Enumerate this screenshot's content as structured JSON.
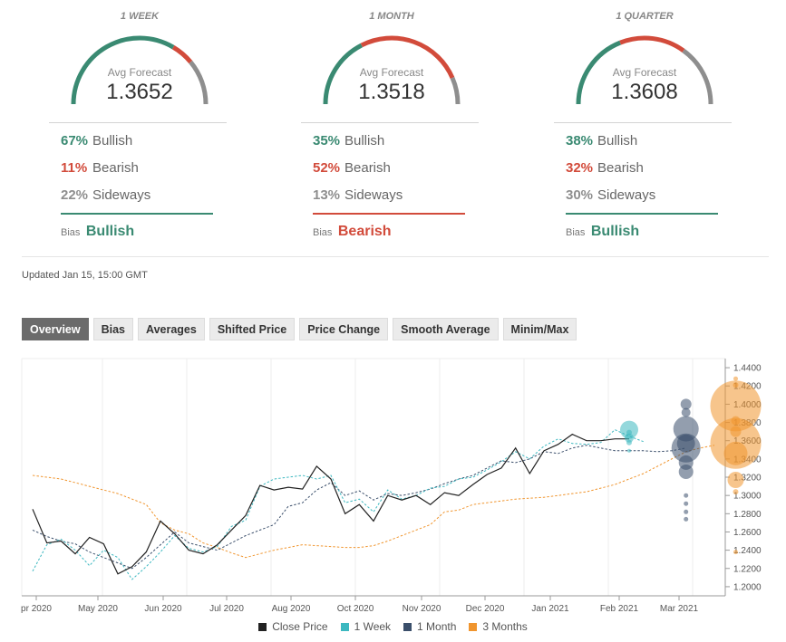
{
  "colors": {
    "bullish": "#3a8a72",
    "bearish": "#d24b3b",
    "sideways": "#8e8e8e",
    "close": "#222222",
    "week": "#3cb8c0",
    "month": "#3b4f6b",
    "quarter": "#f0952e"
  },
  "forecast_panels": [
    {
      "period": "1 WEEK",
      "avg_label": "Avg Forecast",
      "avg_value": "1.3652",
      "bullish_pct": "67%",
      "bullish_label": "Bullish",
      "bearish_pct": "11%",
      "bearish_label": "Bearish",
      "sideways_pct": "22%",
      "sideways_label": "Sideways",
      "bias_label": "Bias",
      "bias_value": "Bullish",
      "bias_type": "bullish",
      "gauge": [
        0.67,
        0.11,
        0.22
      ]
    },
    {
      "period": "1 MONTH",
      "avg_label": "Avg Forecast",
      "avg_value": "1.3518",
      "bullish_pct": "35%",
      "bullish_label": "Bullish",
      "bearish_pct": "52%",
      "bearish_label": "Bearish",
      "sideways_pct": "13%",
      "sideways_label": "Sideways",
      "bias_label": "Bias",
      "bias_value": "Bearish",
      "bias_type": "bearish",
      "gauge": [
        0.35,
        0.52,
        0.13
      ]
    },
    {
      "period": "1 QUARTER",
      "avg_label": "Avg Forecast",
      "avg_value": "1.3608",
      "bullish_pct": "38%",
      "bullish_label": "Bullish",
      "bearish_pct": "32%",
      "bearish_label": "Bearish",
      "sideways_pct": "30%",
      "sideways_label": "Sideways",
      "bias_label": "Bias",
      "bias_value": "Bullish",
      "bias_type": "bullish",
      "gauge": [
        0.38,
        0.32,
        0.3
      ]
    }
  ],
  "updated": "Updated Jan 15, 15:00 GMT",
  "tabs": [
    {
      "label": "Overview",
      "active": true
    },
    {
      "label": "Bias",
      "active": false
    },
    {
      "label": "Averages",
      "active": false
    },
    {
      "label": "Shifted Price",
      "active": false
    },
    {
      "label": "Price Change",
      "active": false
    },
    {
      "label": "Smooth Average",
      "active": false
    },
    {
      "label": "Minim/Max",
      "active": false
    }
  ],
  "legend": [
    {
      "label": "Close Price",
      "key": "close"
    },
    {
      "label": "1 Week",
      "key": "week"
    },
    {
      "label": "1 Month",
      "key": "month"
    },
    {
      "label": "3 Months",
      "key": "quarter"
    }
  ],
  "chart_data": {
    "type": "line",
    "x_tick_labels": [
      "pr 2020",
      "May 2020",
      "Jun 2020",
      "Jul 2020",
      "Aug 2020",
      "Oct 2020",
      "Nov 2020",
      "Dec 2020",
      "Jan 2021",
      "Feb 2021",
      "Mar 2021"
    ],
    "y_tick_labels": [
      "1.4400",
      "1.4200",
      "1.4000",
      "1.3800",
      "1.3600",
      "1.3400",
      "1.3200",
      "1.3000",
      "1.2800",
      "1.2600",
      "1.2400",
      "1.2200",
      "1.2000"
    ],
    "ylim": [
      1.19,
      1.45
    ],
    "x_index_range": [
      0,
      48
    ],
    "series": [
      {
        "name": "Close Price",
        "key": "close",
        "style": "solid",
        "x": [
          0,
          1,
          2,
          3,
          4,
          5,
          6,
          7,
          8,
          9,
          10,
          11,
          12,
          13,
          14,
          15,
          16,
          17,
          18,
          19,
          20,
          21,
          22,
          23,
          24,
          25,
          26,
          27,
          28,
          29,
          30,
          31,
          32,
          33,
          34,
          35,
          36,
          37,
          38,
          39,
          40,
          41,
          42
        ],
        "values": [
          1.285,
          1.248,
          1.25,
          1.236,
          1.254,
          1.247,
          1.214,
          1.222,
          1.238,
          1.272,
          1.258,
          1.24,
          1.236,
          1.246,
          1.262,
          1.278,
          1.311,
          1.306,
          1.309,
          1.307,
          1.332,
          1.318,
          1.28,
          1.29,
          1.272,
          1.3,
          1.295,
          1.3,
          1.29,
          1.303,
          1.3,
          1.312,
          1.323,
          1.33,
          1.352,
          1.324,
          1.349,
          1.356,
          1.367,
          1.36,
          1.36,
          1.362,
          1.362
        ]
      },
      {
        "name": "1 Week",
        "key": "week",
        "style": "dashed",
        "x": [
          0,
          1,
          2,
          3,
          4,
          5,
          6,
          7,
          8,
          9,
          10,
          11,
          12,
          13,
          14,
          15,
          16,
          17,
          18,
          19,
          20,
          21,
          22,
          23,
          24,
          25,
          26,
          27,
          28,
          29,
          30,
          31,
          32,
          33,
          34,
          35,
          36,
          37,
          38,
          39,
          40,
          41,
          42,
          43
        ],
        "values": [
          1.217,
          1.246,
          1.252,
          1.24,
          1.223,
          1.24,
          1.232,
          1.208,
          1.222,
          1.238,
          1.256,
          1.242,
          1.238,
          1.244,
          1.266,
          1.273,
          1.31,
          1.318,
          1.32,
          1.322,
          1.318,
          1.322,
          1.292,
          1.296,
          1.282,
          1.306,
          1.296,
          1.3,
          1.308,
          1.31,
          1.318,
          1.32,
          1.328,
          1.337,
          1.348,
          1.34,
          1.354,
          1.362,
          1.357,
          1.356,
          1.358,
          1.372,
          1.365,
          1.359
        ]
      },
      {
        "name": "1 Month",
        "key": "month",
        "style": "dashed",
        "x": [
          0,
          1,
          2,
          3,
          4,
          5,
          6,
          7,
          8,
          9,
          10,
          11,
          12,
          13,
          14,
          15,
          16,
          17,
          18,
          19,
          20,
          21,
          22,
          23,
          24,
          25,
          26,
          27,
          28,
          29,
          30,
          31,
          32,
          33,
          34,
          35,
          36,
          37,
          38,
          39,
          40,
          41,
          42,
          43,
          44,
          45,
          46
        ],
        "values": [
          1.262,
          1.255,
          1.25,
          1.247,
          1.238,
          1.232,
          1.226,
          1.22,
          1.232,
          1.246,
          1.26,
          1.248,
          1.244,
          1.24,
          1.248,
          1.256,
          1.262,
          1.268,
          1.288,
          1.292,
          1.306,
          1.314,
          1.3,
          1.305,
          1.295,
          1.302,
          1.3,
          1.303,
          1.307,
          1.313,
          1.318,
          1.322,
          1.33,
          1.338,
          1.336,
          1.34,
          1.348,
          1.346,
          1.352,
          1.355,
          1.352,
          1.349,
          1.349,
          1.349,
          1.348,
          1.349,
          1.352
        ]
      },
      {
        "name": "3 Months",
        "key": "quarter",
        "style": "dashed",
        "x": [
          0,
          1,
          2,
          3,
          4,
          5,
          6,
          7,
          8,
          9,
          10,
          11,
          12,
          13,
          14,
          15,
          16,
          17,
          18,
          19,
          20,
          21,
          22,
          23,
          24,
          25,
          26,
          27,
          28,
          29,
          30,
          31,
          32,
          33,
          34,
          35,
          36,
          37,
          38,
          39,
          40,
          41,
          42,
          43,
          44,
          45,
          46,
          47,
          48
        ],
        "values": [
          1.322,
          1.32,
          1.318,
          1.314,
          1.31,
          1.306,
          1.302,
          1.296,
          1.29,
          1.27,
          1.262,
          1.258,
          1.248,
          1.243,
          1.237,
          1.232,
          1.236,
          1.24,
          1.243,
          1.246,
          1.245,
          1.244,
          1.243,
          1.243,
          1.245,
          1.25,
          1.256,
          1.262,
          1.268,
          1.282,
          1.284,
          1.29,
          1.292,
          1.294,
          1.296,
          1.297,
          1.298,
          1.3,
          1.302,
          1.304,
          1.308,
          1.312,
          1.318,
          1.324,
          1.332,
          1.34,
          1.348,
          1.352,
          1.355
        ]
      }
    ],
    "bubble_columns": [
      {
        "key": "week",
        "x": 42,
        "points": [
          {
            "y": 1.372,
            "r": 10
          },
          {
            "y": 1.369,
            "r": 3
          },
          {
            "y": 1.363,
            "r": 5
          },
          {
            "y": 1.358,
            "r": 3
          },
          {
            "y": 1.349,
            "r": 2
          }
        ]
      },
      {
        "key": "month",
        "x": 46,
        "points": [
          {
            "y": 1.4,
            "r": 6
          },
          {
            "y": 1.391,
            "r": 5
          },
          {
            "y": 1.373,
            "r": 14
          },
          {
            "y": 1.357,
            "r": 10
          },
          {
            "y": 1.352,
            "r": 16
          },
          {
            "y": 1.336,
            "r": 8
          },
          {
            "y": 1.326,
            "r": 8
          },
          {
            "y": 1.3,
            "r": 2.5
          },
          {
            "y": 1.291,
            "r": 2.5
          },
          {
            "y": 1.282,
            "r": 2.5
          },
          {
            "y": 1.274,
            "r": 2.5
          }
        ]
      },
      {
        "key": "quarter",
        "x": 49.5,
        "points": [
          {
            "y": 1.428,
            "r": 2.5
          },
          {
            "y": 1.421,
            "r": 3
          },
          {
            "y": 1.398,
            "r": 28
          },
          {
            "y": 1.382,
            "r": 5
          },
          {
            "y": 1.37,
            "r": 6
          },
          {
            "y": 1.357,
            "r": 28
          },
          {
            "y": 1.346,
            "r": 13
          },
          {
            "y": 1.317,
            "r": 9
          },
          {
            "y": 1.304,
            "r": 3
          },
          {
            "y": 1.238,
            "r": 2.5
          }
        ]
      }
    ]
  }
}
